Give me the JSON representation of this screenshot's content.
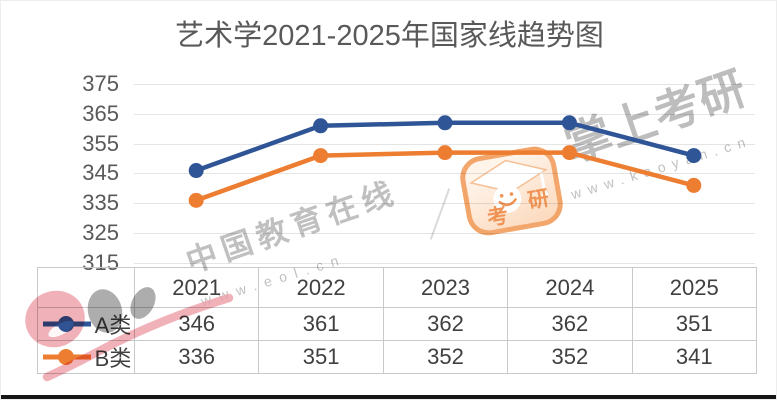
{
  "title": "艺术学2021-2025年国家线趋势图",
  "chart_data": {
    "type": "line",
    "title": "艺术学2021-2025年国家线趋势图",
    "categories": [
      "2021",
      "2022",
      "2023",
      "2024",
      "2025"
    ],
    "series": [
      {
        "name": "A类",
        "color": "#2F5597",
        "values": [
          346,
          361,
          362,
          362,
          351
        ]
      },
      {
        "name": "B类",
        "color": "#ED7D31",
        "values": [
          336,
          351,
          352,
          352,
          341
        ]
      }
    ],
    "yticks": [
      "375",
      "365",
      "355",
      "345",
      "335",
      "325",
      "315"
    ],
    "ylim": [
      315,
      375
    ],
    "grid": true,
    "legend_position": "data-table-left",
    "marker": "circle"
  },
  "watermarks": {
    "eol_name": "中国教育在线",
    "eol_url": "www.eol.cn",
    "kaoyan_name": "掌上考研",
    "kaoyan_url": "www.kaoyan.cn",
    "stamp_char_1": "考",
    "stamp_char_2": "研"
  },
  "colors": {
    "series_a": "#2F5597",
    "series_b": "#ED7D31",
    "gridline": "#e5e5e5",
    "axis_text": "#595959",
    "table_text": "#404040",
    "table_border": "#c9c9c9",
    "watermark_gray": "#9a9a9a",
    "watermark_pink": "#ee9ea6",
    "stamp_orange": "#ED7D31"
  }
}
